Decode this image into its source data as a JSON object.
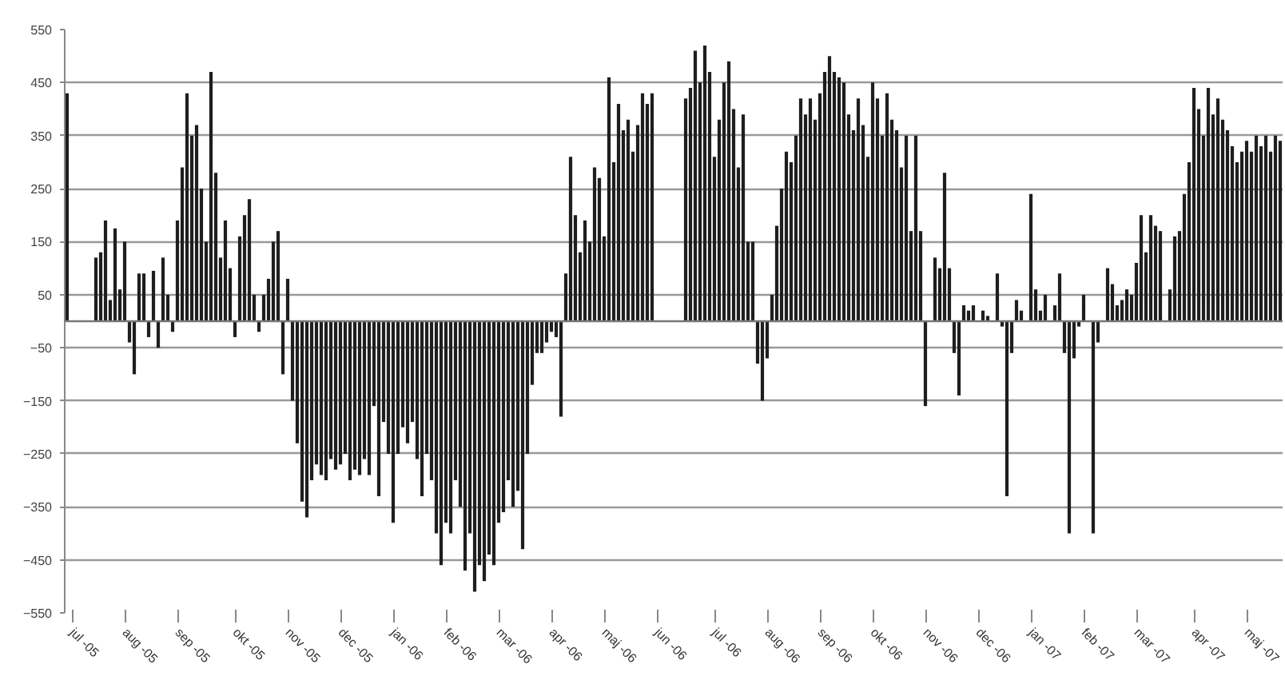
{
  "chart_data": {
    "type": "bar",
    "categories": [
      null,
      "jul -05",
      null,
      null,
      null,
      null,
      null,
      null,
      null,
      null,
      null,
      null,
      "aug -05",
      null,
      null,
      null,
      null,
      null,
      null,
      null,
      null,
      null,
      null,
      "sep -05",
      null,
      null,
      null,
      null,
      null,
      null,
      null,
      null,
      null,
      null,
      null,
      "okt -05",
      null,
      null,
      null,
      null,
      null,
      null,
      null,
      null,
      null,
      null,
      "nov -05",
      null,
      null,
      null,
      null,
      null,
      null,
      null,
      null,
      null,
      null,
      "dec -05",
      null,
      null,
      null,
      null,
      null,
      null,
      null,
      null,
      null,
      null,
      "jan -06",
      null,
      null,
      null,
      null,
      null,
      null,
      null,
      null,
      null,
      null,
      "feb -06",
      null,
      null,
      null,
      null,
      null,
      null,
      null,
      null,
      null,
      null,
      "mar -06",
      null,
      null,
      null,
      null,
      null,
      null,
      null,
      null,
      null,
      null,
      "apr -06",
      null,
      null,
      null,
      null,
      null,
      null,
      null,
      null,
      null,
      null,
      "maj -06",
      null,
      null,
      null,
      null,
      null,
      null,
      null,
      null,
      null,
      null,
      "jun -06",
      null,
      null,
      null,
      null,
      null,
      null,
      null,
      null,
      null,
      null,
      null,
      "jul -06",
      null,
      null,
      null,
      null,
      null,
      null,
      null,
      null,
      null,
      null,
      "aug -06",
      null,
      null,
      null,
      null,
      null,
      null,
      null,
      null,
      null,
      null,
      "sep -06",
      null,
      null,
      null,
      null,
      null,
      null,
      null,
      null,
      null,
      null,
      "okt -06",
      null,
      null,
      null,
      null,
      null,
      null,
      null,
      null,
      null,
      null,
      "nov -06",
      null,
      null,
      null,
      null,
      null,
      null,
      null,
      null,
      null,
      null,
      "dec -06",
      null,
      null,
      null,
      null,
      null,
      null,
      null,
      null,
      null,
      null,
      "jan -07",
      null,
      null,
      null,
      null,
      null,
      null,
      null,
      null,
      null,
      null,
      "feb -07",
      null,
      null,
      null,
      null,
      null,
      null,
      null,
      null,
      null,
      null,
      "mar -07",
      null,
      null,
      null,
      null,
      null,
      null,
      null,
      null,
      null,
      null,
      null,
      "apr -07",
      null,
      null,
      null,
      null,
      null,
      null,
      null,
      null,
      null,
      null,
      "maj -07",
      null,
      null,
      null,
      null,
      null,
      null,
      null
    ],
    "values": [
      430,
      null,
      null,
      null,
      null,
      null,
      120,
      130,
      190,
      40,
      175,
      60,
      150,
      -40,
      -100,
      90,
      90,
      -30,
      95,
      -50,
      120,
      50,
      -20,
      190,
      290,
      430,
      350,
      370,
      250,
      150,
      470,
      280,
      120,
      190,
      100,
      -30,
      160,
      200,
      230,
      50,
      -20,
      50,
      80,
      150,
      170,
      -100,
      80,
      -150,
      -230,
      -340,
      -370,
      -300,
      -270,
      -290,
      -300,
      -260,
      -280,
      -270,
      -250,
      -300,
      -280,
      -290,
      -260,
      -290,
      -160,
      -330,
      -190,
      -250,
      -380,
      -250,
      -200,
      -230,
      -190,
      -260,
      -330,
      -250,
      -300,
      -400,
      -460,
      -380,
      -400,
      -300,
      -350,
      -470,
      -400,
      -510,
      -460,
      -490,
      -440,
      -460,
      -380,
      -360,
      -300,
      -350,
      -320,
      -430,
      -250,
      -120,
      -60,
      -60,
      -40,
      -20,
      -30,
      -180,
      90,
      310,
      200,
      130,
      190,
      150,
      290,
      270,
      160,
      460,
      300,
      410,
      360,
      380,
      320,
      370,
      430,
      410,
      430,
      null,
      null,
      null,
      null,
      null,
      null,
      420,
      440,
      510,
      450,
      520,
      470,
      310,
      380,
      450,
      490,
      400,
      290,
      390,
      150,
      150,
      -80,
      -150,
      -70,
      50,
      180,
      250,
      320,
      300,
      350,
      420,
      390,
      420,
      380,
      430,
      470,
      500,
      470,
      460,
      450,
      390,
      360,
      420,
      370,
      310,
      450,
      420,
      350,
      430,
      380,
      360,
      290,
      350,
      170,
      350,
      170,
      -160,
      null,
      120,
      100,
      280,
      100,
      -60,
      -140,
      30,
      20,
      30,
      null,
      20,
      10,
      null,
      90,
      -10,
      -330,
      -60,
      40,
      20,
      null,
      240,
      60,
      20,
      50,
      null,
      30,
      90,
      -60,
      -400,
      -70,
      -10,
      50,
      null,
      -400,
      -40,
      null,
      100,
      70,
      30,
      40,
      60,
      50,
      110,
      200,
      130,
      200,
      180,
      170,
      null,
      60,
      160,
      170,
      240,
      300,
      440,
      400,
      350,
      440,
      390,
      420,
      380,
      360,
      330,
      300,
      320,
      340,
      320,
      350,
      330,
      350,
      320,
      350,
      340
    ],
    "color": "#1e1e1e",
    "ylim": [
      -550,
      550
    ],
    "yticks": [
      -550,
      -450,
      -350,
      -250,
      -150,
      -50,
      50,
      150,
      250,
      350,
      450,
      550
    ],
    "grid": "y"
  }
}
